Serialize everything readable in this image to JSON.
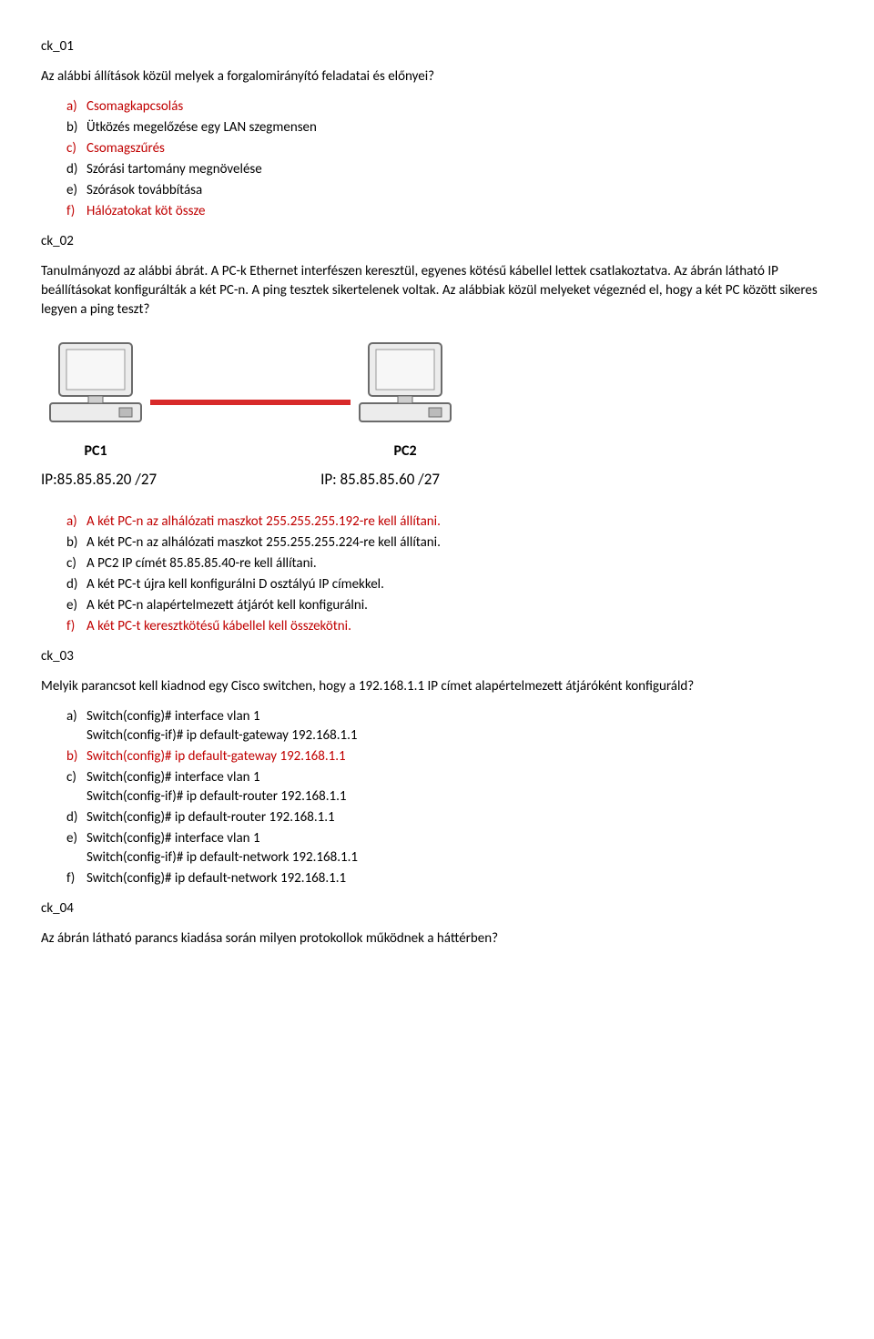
{
  "q1": {
    "label": "ck_01",
    "question": "Az alábbi állítások közül melyek a forgalomirányító feladatai és előnyei?",
    "options": [
      {
        "letter": "a)",
        "text": "Csomagkapcsolás",
        "red": true
      },
      {
        "letter": "b)",
        "text": "Ütközés megelőzése egy LAN szegmensen",
        "red": false
      },
      {
        "letter": "c)",
        "text": "Csomagszűrés",
        "red": true
      },
      {
        "letter": "d)",
        "text": "Szórási tartomány megnövelése",
        "red": false
      },
      {
        "letter": "e)",
        "text": "Szórások továbbítása",
        "red": false
      },
      {
        "letter": "f)",
        "text": "Hálózatokat köt össze",
        "red": true
      }
    ]
  },
  "q2": {
    "label": "ck_02",
    "question": "Tanulmányozd az alábbi ábrát. A PC-k Ethernet interfészen keresztül, egyenes kötésű kábellel lettek csatlakoztatva. Az ábrán látható IP beállításokat konfigurálták a két PC-n. A ping tesztek sikertelenek voltak. Az alábbiak közül melyeket végeznéd el, hogy a két PC között sikeres legyen a ping teszt?",
    "diagram": {
      "pc1_label": "PC1",
      "pc2_label": "PC2",
      "ip1": "IP:85.85.85.20 /27",
      "ip2": "IP: 85.85.85.60 /27",
      "cable_color": "#d82a2a",
      "pc_fill": "#e8e8e8",
      "pc_stroke": "#6b6b6b"
    },
    "options": [
      {
        "letter": "a)",
        "text": "A két PC-n az alhálózati maszkot 255.255.255.192-re kell állítani.",
        "red": true
      },
      {
        "letter": "b)",
        "text": "A két PC-n az alhálózati maszkot 255.255.255.224-re kell állítani.",
        "red": false
      },
      {
        "letter": "c)",
        "text": "A PC2 IP címét 85.85.85.40-re kell állítani.",
        "red": false
      },
      {
        "letter": "d)",
        "text": "A két PC-t újra kell konfigurálni D osztályú IP címekkel.",
        "red": false
      },
      {
        "letter": "e)",
        "text": "A két PC-n alapértelmezett átjárót kell konfigurálni.",
        "red": false
      },
      {
        "letter": "f)",
        "text": "A két PC-t keresztkötésű kábellel kell összekötni.",
        "red": true
      }
    ]
  },
  "q3": {
    "label": "ck_03",
    "question": "Melyik parancsot kell kiadnod egy Cisco switchen, hogy a 192.168.1.1 IP címet alapértelmezett átjáróként konfiguráld?",
    "options": [
      {
        "letter": "a)",
        "line1": "Switch(config)# interface vlan 1",
        "line2": "Switch(config-if)# ip default-gateway 192.168.1.1",
        "red": false
      },
      {
        "letter": "b)",
        "line1": "Switch(config)# ip default-gateway 192.168.1.1",
        "line2": "",
        "red": true
      },
      {
        "letter": "c)",
        "line1": "Switch(config)# interface vlan 1",
        "line2": "Switch(config-if)# ip default-router 192.168.1.1",
        "red": false
      },
      {
        "letter": "d)",
        "line1": "Switch(config)# ip default-router 192.168.1.1",
        "line2": "",
        "red": false
      },
      {
        "letter": "e)",
        "line1": "Switch(config)# interface vlan 1",
        "line2": "Switch(config-if)# ip default-network 192.168.1.1",
        "red": false
      },
      {
        "letter": "f)",
        "line1": "Switch(config)# ip default-network 192.168.1.1",
        "line2": "",
        "red": false
      }
    ]
  },
  "q4": {
    "label": "ck_04",
    "question": "Az ábrán látható parancs kiadása során milyen protokollok működnek a háttérben?"
  }
}
